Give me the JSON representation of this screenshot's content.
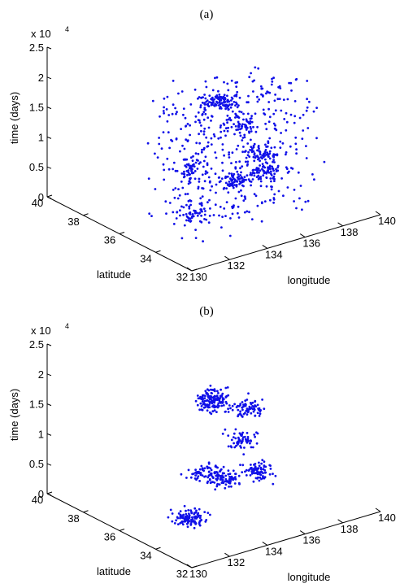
{
  "chart_data": [
    {
      "type": "scatter",
      "panel_label": "(a)",
      "xlabel": "longitude",
      "ylabel": "latitude",
      "zlabel": "time (days)",
      "z_multiplier": "x 10",
      "z_multiplier_exp": "4",
      "xlim": [
        130,
        140
      ],
      "ylim": [
        32,
        40
      ],
      "zlim": [
        0,
        25000
      ],
      "xticks": [
        "130",
        "132",
        "134",
        "136",
        "138",
        "140"
      ],
      "yticks": [
        "32",
        "34",
        "36",
        "38",
        "40"
      ],
      "zticks": [
        "0",
        "0.5",
        "1",
        "1.5",
        "2",
        "2.5"
      ],
      "clusters": [
        {
          "lon": 134.0,
          "lat": 35.0,
          "t": 20000,
          "n": 10
        },
        {
          "lon": 135.5,
          "lat": 35.8,
          "t": 17000,
          "n": 8
        },
        {
          "lon": 136.0,
          "lat": 35.5,
          "t": 13500,
          "n": 8
        },
        {
          "lon": 133.5,
          "lat": 35.5,
          "t": 8000,
          "n": 8
        },
        {
          "lon": 135.0,
          "lat": 34.8,
          "t": 6000,
          "n": 12
        },
        {
          "lon": 137.0,
          "lat": 35.2,
          "t": 5000,
          "n": 10
        },
        {
          "lon": 132.5,
          "lat": 34.5,
          "t": 3500,
          "n": 8
        },
        {
          "lon": 136.5,
          "lat": 35.0,
          "t": 9000,
          "n": 10
        }
      ],
      "point_count": 900
    },
    {
      "type": "scatter",
      "panel_label": "(b)",
      "xlabel": "longitude",
      "ylabel": "latitude",
      "zlabel": "time (days)",
      "z_multiplier": "x 10",
      "z_multiplier_exp": "4",
      "xlim": [
        130,
        140
      ],
      "ylim": [
        32,
        40
      ],
      "zlim": [
        0,
        25000
      ],
      "xticks": [
        "130",
        "132",
        "134",
        "136",
        "138",
        "140"
      ],
      "yticks": [
        "32",
        "34",
        "36",
        "38",
        "40"
      ],
      "zticks": [
        "0",
        "0.5",
        "1",
        "1.5",
        "2",
        "2.5"
      ],
      "clusters": [
        {
          "lon": 134.0,
          "lat": 35.0,
          "t": 20000,
          "n": 14
        },
        {
          "lon": 134.5,
          "lat": 35.6,
          "t": 17500,
          "n": 10
        },
        {
          "lon": 136.5,
          "lat": 35.8,
          "t": 14500,
          "n": 14
        },
        {
          "lon": 135.8,
          "lat": 35.2,
          "t": 11000,
          "n": 10
        },
        {
          "lon": 133.2,
          "lat": 34.6,
          "t": 9000,
          "n": 10
        },
        {
          "lon": 134.6,
          "lat": 35.0,
          "t": 6000,
          "n": 14
        },
        {
          "lon": 136.8,
          "lat": 35.4,
          "t": 4500,
          "n": 14
        },
        {
          "lon": 131.8,
          "lat": 34.2,
          "t": 3000,
          "n": 10
        },
        {
          "lon": 132.8,
          "lat": 34.8,
          "t": 1500,
          "n": 8
        }
      ],
      "point_count": 500
    }
  ]
}
